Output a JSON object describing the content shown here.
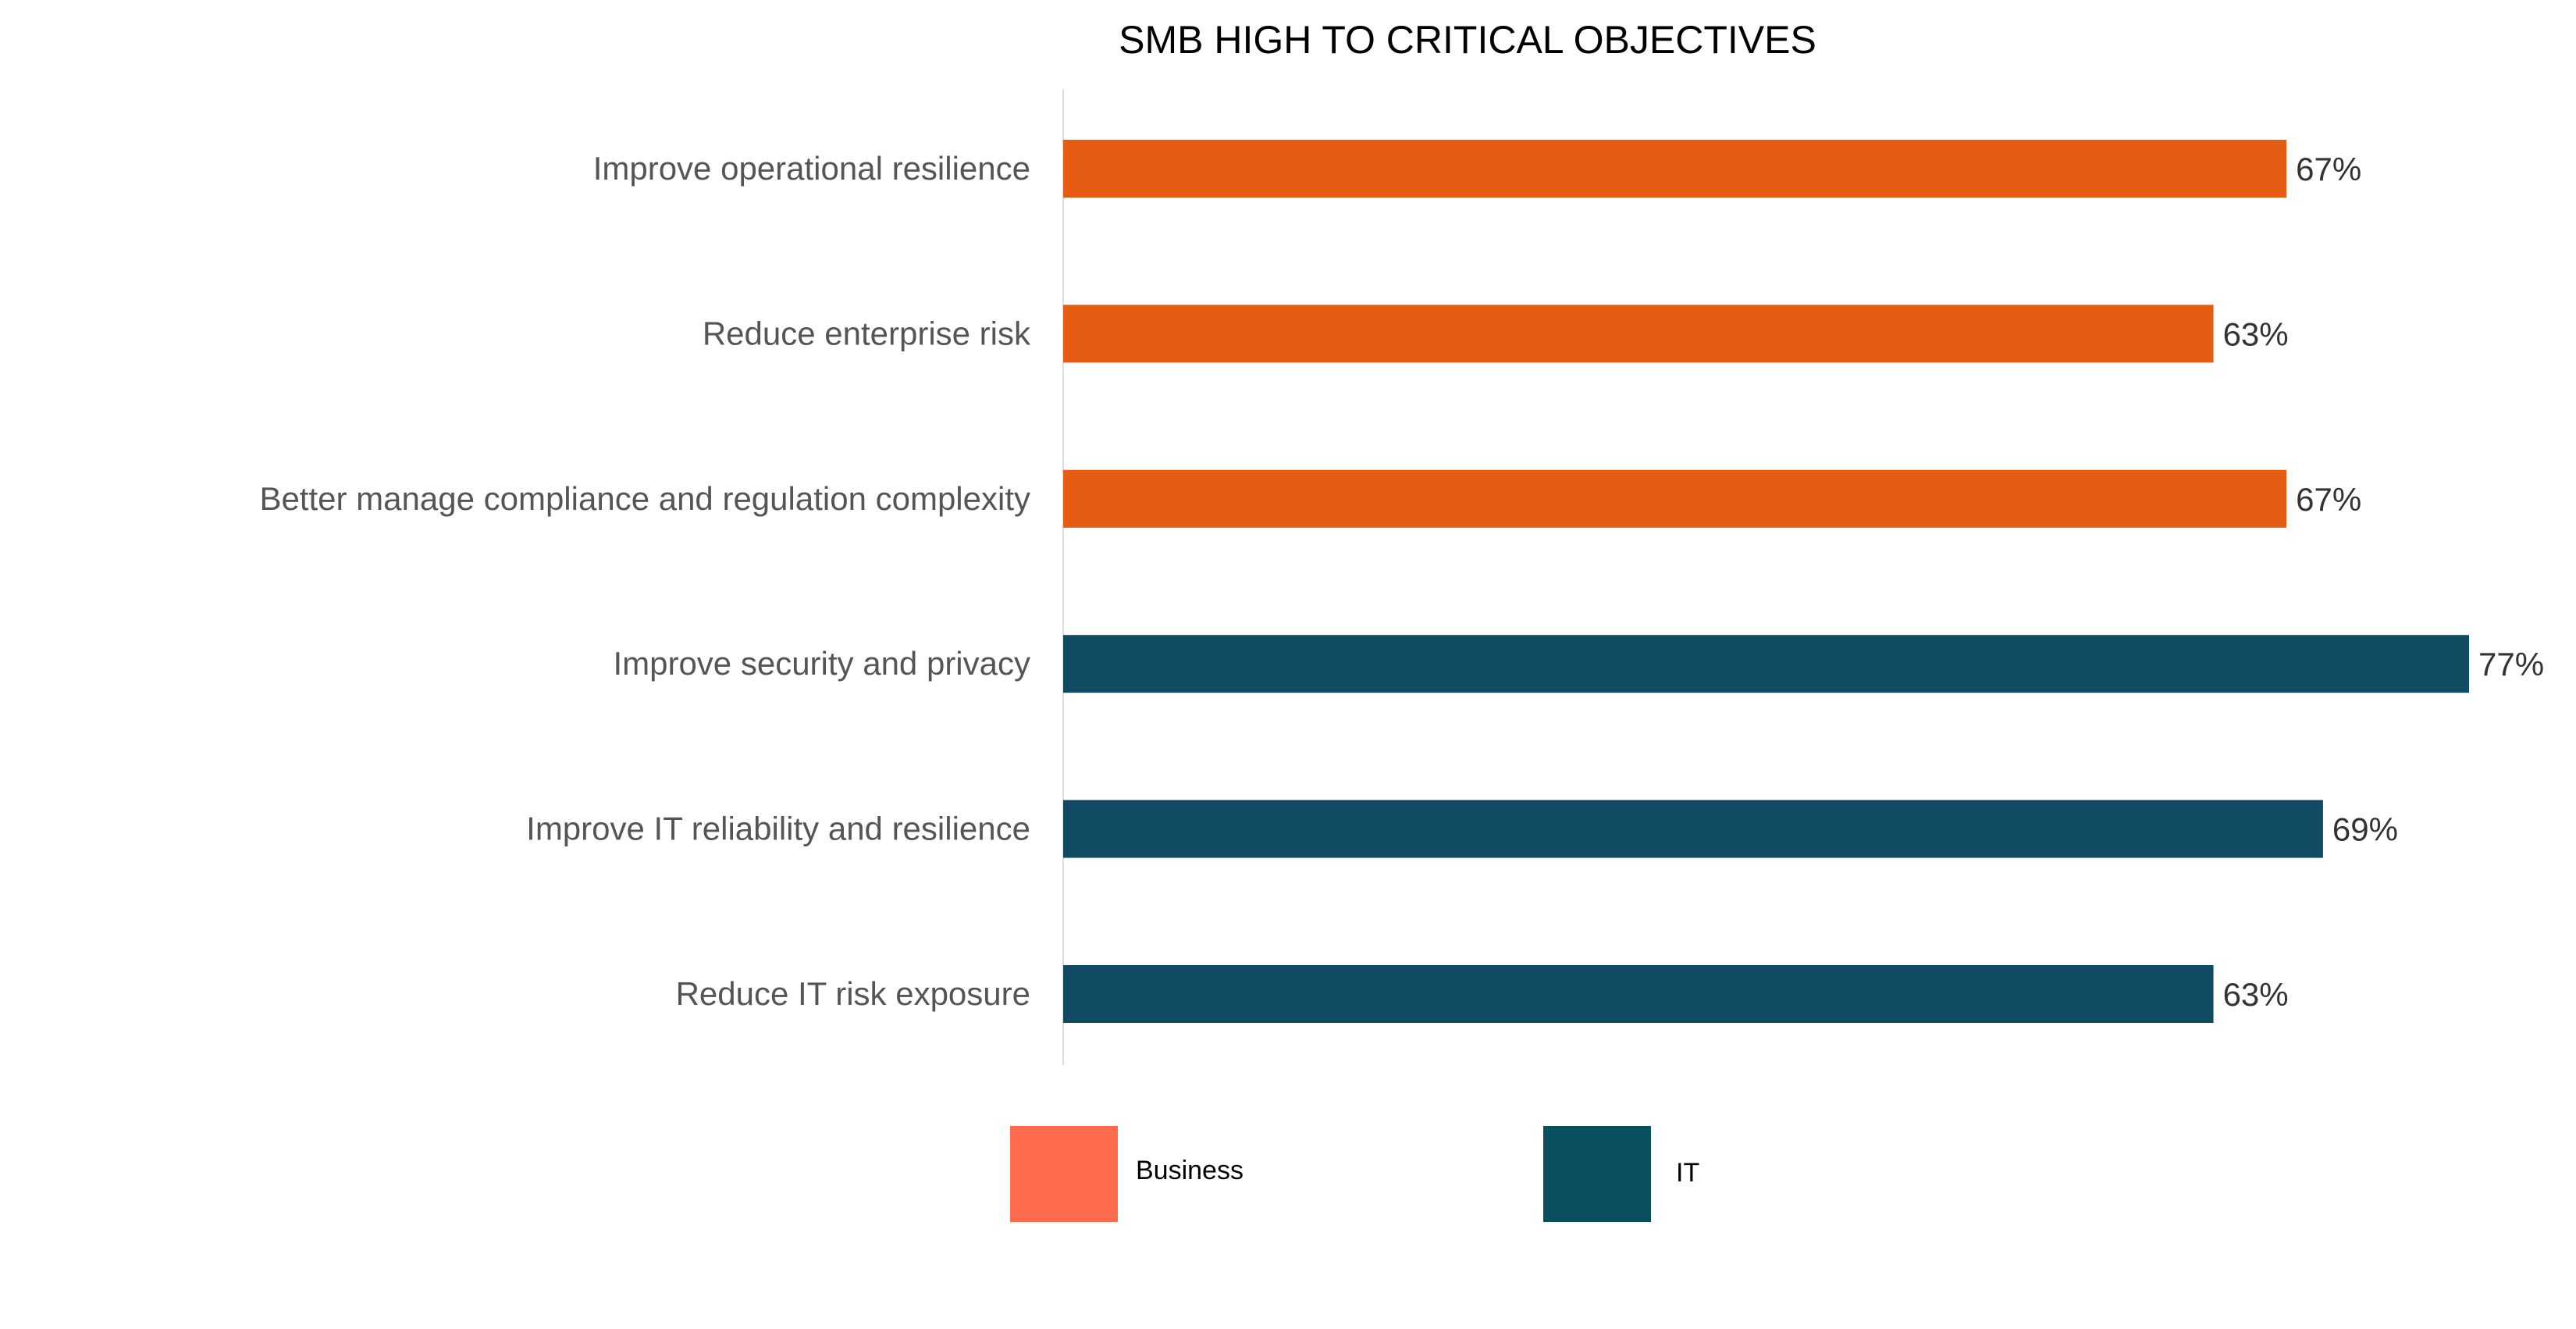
{
  "chart_data": {
    "type": "bar",
    "orientation": "horizontal",
    "title": "SMB HIGH TO CRITICAL OBJECTIVES",
    "xlabel": "",
    "ylabel": "",
    "xlim": [
      0,
      100
    ],
    "grid": false,
    "categories": [
      "Improve operational resilience",
      "Reduce enterprise risk",
      "Better manage compliance and regulation complexity",
      "Improve security and privacy",
      "Improve IT reliability and resilience",
      "Reduce IT risk exposure"
    ],
    "values": [
      67,
      63,
      67,
      77,
      69,
      63
    ],
    "value_labels": [
      "67%",
      "63%",
      "67%",
      "77%",
      "69%",
      "63%"
    ],
    "groups": [
      "Business",
      "Business",
      "Business",
      "IT",
      "IT",
      "IT"
    ],
    "legend_placement": "bottom",
    "legend": [
      {
        "name": "Business",
        "color": "#FF6B4D"
      },
      {
        "name": "IT",
        "color": "#0A4F5E"
      }
    ],
    "bar_colors": {
      "Business": "#E65C13",
      "IT": "#114A63"
    }
  }
}
